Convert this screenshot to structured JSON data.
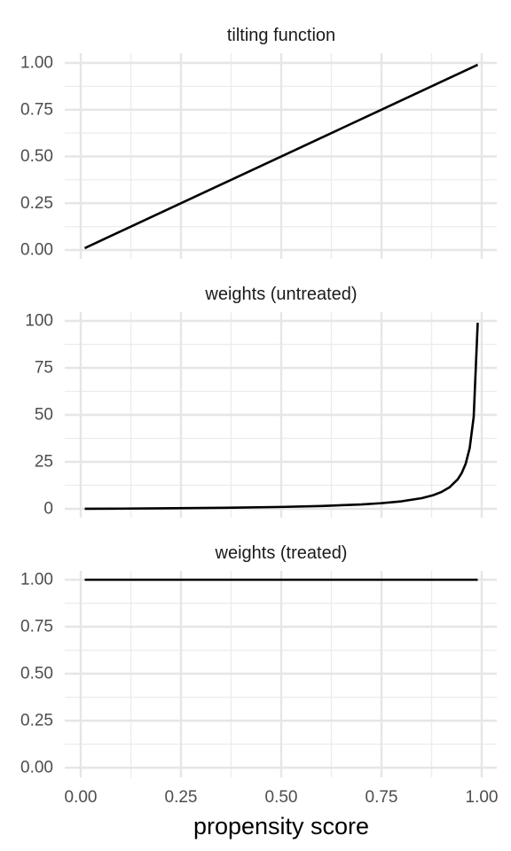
{
  "chart_data": [
    {
      "type": "line",
      "title": "tilting function",
      "ylim": [
        0,
        1
      ],
      "yticks": [
        0,
        0.25,
        0.5,
        0.75,
        1
      ],
      "ytick_labels": [
        "0.00",
        "0.25",
        "0.50",
        "0.75",
        "1.00"
      ],
      "grid": true,
      "series": [
        {
          "x": [
            0.01,
            0.99
          ],
          "y": [
            0.01,
            0.99
          ]
        }
      ]
    },
    {
      "type": "line",
      "title": "weights (untreated)",
      "ylim": [
        0,
        100
      ],
      "yticks": [
        0,
        25,
        50,
        75,
        100
      ],
      "ytick_labels": [
        "0",
        "25",
        "50",
        "75",
        "100"
      ],
      "grid": true,
      "series": [
        {
          "x": [
            0.01,
            0.1,
            0.2,
            0.3,
            0.4,
            0.5,
            0.6,
            0.7,
            0.75,
            0.8,
            0.85,
            0.88,
            0.9,
            0.92,
            0.94,
            0.95,
            0.96,
            0.97,
            0.98,
            0.99
          ],
          "y": [
            0.0101,
            0.111,
            0.25,
            0.429,
            0.667,
            1,
            1.5,
            2.33,
            3,
            4,
            5.67,
            7.33,
            9,
            11.5,
            15.67,
            19,
            24,
            32.33,
            49,
            99
          ]
        }
      ]
    },
    {
      "type": "line",
      "title": "weights (treated)",
      "ylim": [
        0,
        1
      ],
      "yticks": [
        0,
        0.25,
        0.5,
        0.75,
        1
      ],
      "ytick_labels": [
        "0.00",
        "0.25",
        "0.50",
        "0.75",
        "1.00"
      ],
      "grid": true,
      "series": [
        {
          "x": [
            0.01,
            0.99
          ],
          "y": [
            1,
            1
          ]
        }
      ]
    }
  ],
  "x_axis": {
    "label": "propensity score",
    "ticks": [
      0,
      0.25,
      0.5,
      0.75,
      1
    ],
    "tick_labels": [
      "0.00",
      "0.25",
      "0.50",
      "0.75",
      "1.00"
    ],
    "xlim": [
      0,
      1
    ]
  }
}
